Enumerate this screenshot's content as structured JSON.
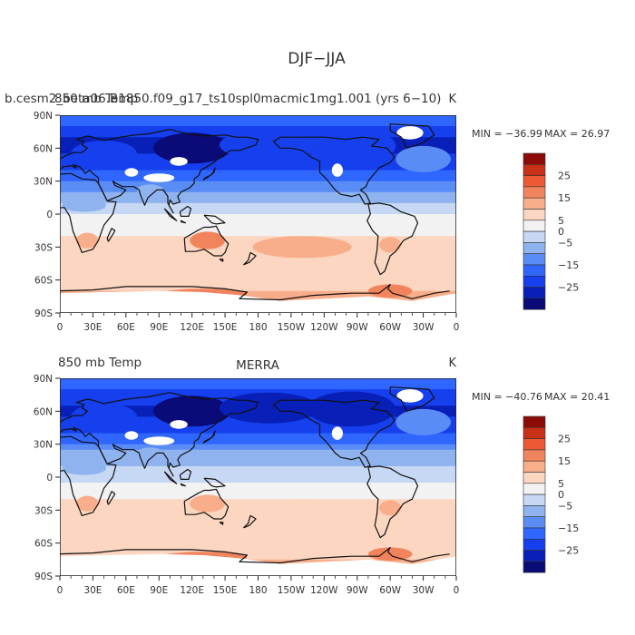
{
  "figure": {
    "title": "DJF−JJA"
  },
  "colorbar_levels": [
    -30,
    -25,
    -20,
    -15,
    -10,
    -5,
    0,
    5,
    10,
    15,
    20,
    25,
    30
  ],
  "colorbar_colors": [
    "#0a0a78",
    "#0820b8",
    "#1640ee",
    "#2e66ff",
    "#5a8cf6",
    "#8fb3ee",
    "#c6d8f3",
    "#f2f2f2",
    "#fcd6c0",
    "#f8ae8a",
    "#f2845d",
    "#ea5a34",
    "#c83018",
    "#8c0c08"
  ],
  "colorbar_tick_labels": [
    "25",
    "15",
    "5",
    "0",
    "−5",
    "−15",
    "−25"
  ],
  "x_tick_labels": [
    "0",
    "30E",
    "60E",
    "90E",
    "120E",
    "150E",
    "180",
    "150W",
    "120W",
    "90W",
    "60W",
    "30W",
    "0"
  ],
  "y_tick_labels": [
    "90N",
    "60N",
    "30N",
    "0",
    "30S",
    "60S",
    "90S"
  ],
  "chart_data": [
    {
      "type": "heatmap",
      "title": "b.cesm2_beta06.B1850.f09_g17_ts10spl0macmic1mg1.001 (yrs 6−10)",
      "overlay_text": "850 mb Temp",
      "units": "K",
      "variable": "850 mb Temp",
      "season_difference": "DJF−JJA",
      "min_label": "MIN = −36.99",
      "max_label": "MAX =  26.97",
      "min": -36.99,
      "max": 26.97,
      "xlim": [
        0,
        360
      ],
      "ylim": [
        -90,
        90
      ],
      "zonal_profile": {
        "lat": [
          90,
          75,
          60,
          45,
          30,
          15,
          0,
          -15,
          -30,
          -45,
          -60,
          -75,
          -90
        ],
        "value": [
          -14,
          -24,
          -27,
          -23,
          -15,
          -7,
          0,
          4,
          9,
          8,
          7,
          12,
          12
        ]
      }
    },
    {
      "type": "heatmap",
      "title": "MERRA",
      "left_label": "850 mb Temp",
      "units": "K",
      "variable": "850 mb Temp",
      "season_difference": "DJF−JJA",
      "min_label": "MIN = −40.76",
      "max_label": "MAX =  20.41",
      "min": -40.76,
      "max": 20.41,
      "xlim": [
        0,
        360
      ],
      "ylim": [
        -90,
        90
      ],
      "zonal_profile": {
        "lat": [
          90,
          75,
          60,
          45,
          30,
          15,
          0,
          -15,
          -30,
          -45,
          -60,
          -75,
          -90
        ],
        "value": [
          -15,
          -23,
          -26,
          -22,
          -14,
          -6,
          -1,
          3,
          8,
          7,
          7,
          10,
          10
        ]
      }
    }
  ]
}
